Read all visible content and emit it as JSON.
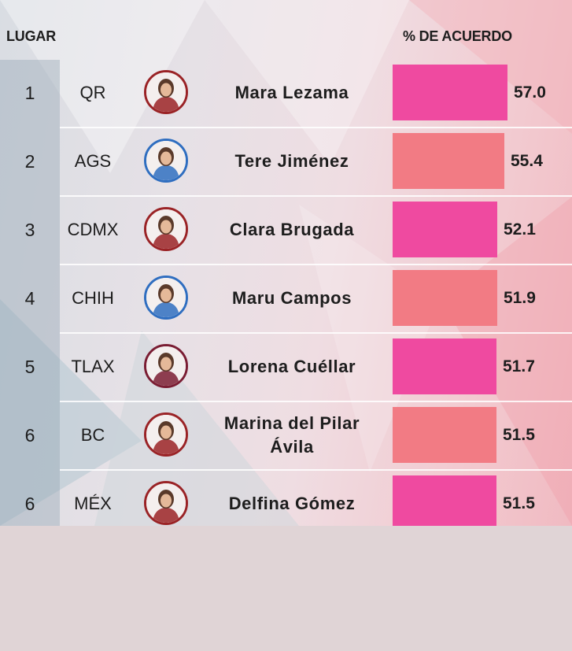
{
  "header": {
    "rank_label": "LUGAR",
    "value_label": "% DE ACUERDO"
  },
  "colors": {
    "bar_pink": "#ef4aa0",
    "bar_coral": "#f27b84",
    "avatar_ring_red": "#9a2326",
    "avatar_ring_blue": "#2f6ec0",
    "avatar_ring_maroon": "#7a1d33"
  },
  "chart_data": {
    "type": "bar",
    "orientation": "horizontal",
    "categories": [
      "Mara Lezama",
      "Tere Jiménez",
      "Clara Brugada",
      "Maru Campos",
      "Lorena Cuéllar",
      "Marina del Pilar Ávila",
      "Delfina Gómez"
    ],
    "values": [
      57.0,
      55.4,
      52.1,
      51.9,
      51.7,
      51.5,
      51.5
    ],
    "value_labels": [
      "57.0",
      "55.4",
      "52.1",
      "51.9",
      "51.7",
      "51.5",
      "51.5"
    ],
    "grid": false,
    "legend": "none"
  },
  "rows": [
    {
      "rank": "1",
      "state": "QR",
      "name": "Mara Lezama",
      "value": "57.0",
      "bar_color": "#ef4aa0",
      "avatar_ring": "#9a2326",
      "avatar_icon": "portrait-icon"
    },
    {
      "rank": "2",
      "state": "AGS",
      "name": "Tere Jiménez",
      "value": "55.4",
      "bar_color": "#f27b84",
      "avatar_ring": "#2f6ec0",
      "avatar_icon": "portrait-icon"
    },
    {
      "rank": "3",
      "state": "CDMX",
      "name": "Clara Brugada",
      "value": "52.1",
      "bar_color": "#ef4aa0",
      "avatar_ring": "#9a2326",
      "avatar_icon": "portrait-icon"
    },
    {
      "rank": "4",
      "state": "CHIH",
      "name": "Maru Campos",
      "value": "51.9",
      "bar_color": "#f27b84",
      "avatar_ring": "#2f6ec0",
      "avatar_icon": "portrait-icon"
    },
    {
      "rank": "5",
      "state": "TLAX",
      "name": "Lorena Cuéllar",
      "value": "51.7",
      "bar_color": "#ef4aa0",
      "avatar_ring": "#7a1d33",
      "avatar_icon": "portrait-icon"
    },
    {
      "rank": "6",
      "state": "BC",
      "name": "Marina del Pilar Ávila",
      "value": "51.5",
      "bar_color": "#f27b84",
      "avatar_ring": "#9a2326",
      "avatar_icon": "portrait-icon"
    },
    {
      "rank": "6",
      "state": "MÉX",
      "name": "Delfina Gómez",
      "value": "51.5",
      "bar_color": "#ef4aa0",
      "avatar_ring": "#9a2326",
      "avatar_icon": "portrait-icon"
    }
  ]
}
